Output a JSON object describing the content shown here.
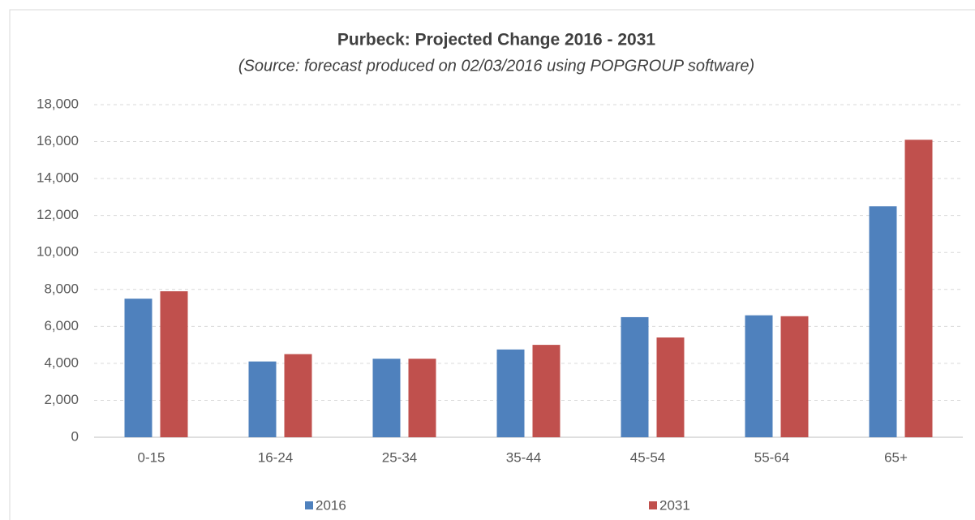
{
  "chart_data": {
    "type": "bar",
    "title": "Purbeck: Projected Change 2016 - 2031",
    "subtitle": "(Source: forecast produced on 02/03/2016 using POPGROUP software)",
    "categories": [
      "0-15",
      "16-24",
      "25-34",
      "35-44",
      "45-54",
      "55-64",
      "65+"
    ],
    "series": [
      {
        "name": "2016",
        "color": "#4f81bd",
        "values": [
          7500,
          4100,
          4250,
          4750,
          6500,
          6600,
          12500
        ]
      },
      {
        "name": "2031",
        "color": "#c0504d",
        "values": [
          7900,
          4500,
          4250,
          5000,
          5400,
          6550,
          16100
        ]
      }
    ],
    "ylim": [
      0,
      18000
    ],
    "yticks": [
      0,
      {
        "value": 2000,
        "label": "2,000"
      },
      {
        "value": 4000,
        "label": "4,000"
      },
      {
        "value": 6000,
        "label": "6,000"
      },
      {
        "value": 8000,
        "label": "8,000"
      },
      {
        "value": 10000,
        "label": "10,000"
      },
      {
        "value": 12000,
        "label": "12,000"
      },
      {
        "value": 14000,
        "label": "14,000"
      },
      {
        "value": 16000,
        "label": "16,000"
      },
      {
        "value": 18000,
        "label": "18,000"
      }
    ],
    "grid": true,
    "legend": "bottom"
  }
}
